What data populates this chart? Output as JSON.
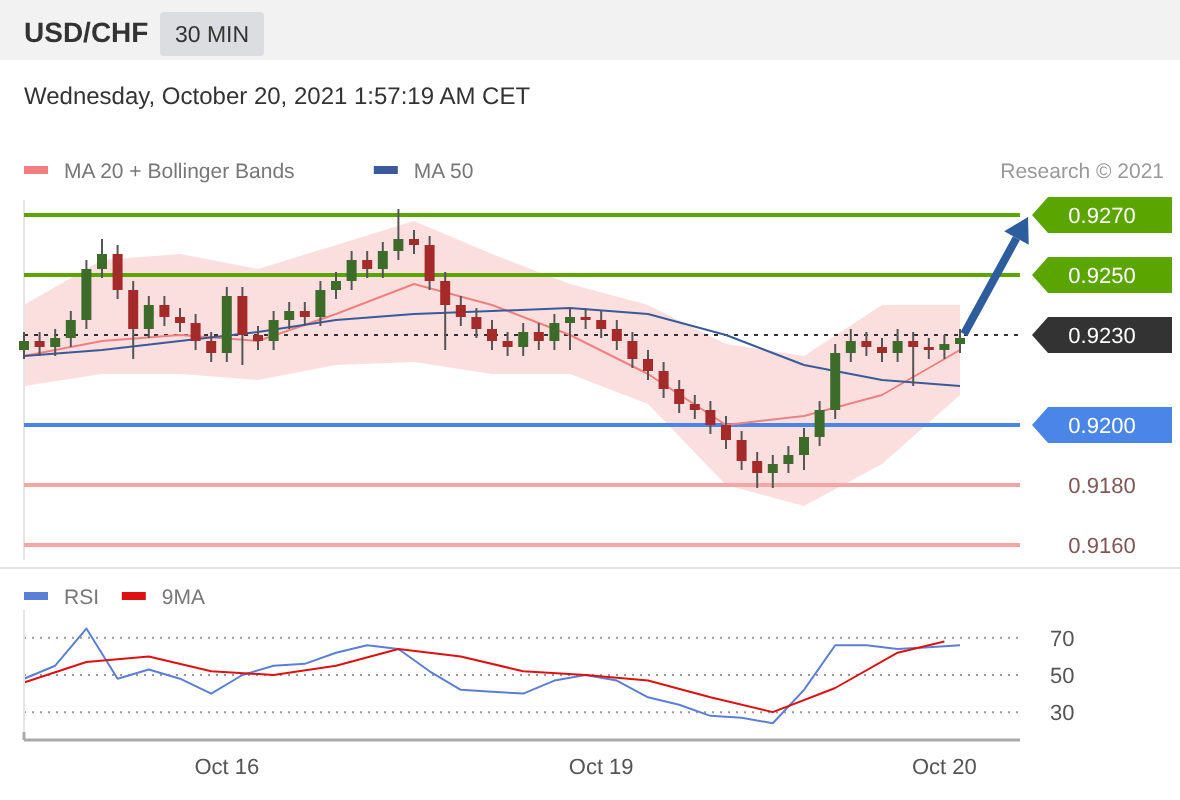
{
  "chart_data": [
    {
      "type": "candlestick",
      "title": "USD/CHF",
      "subtitle": "Wednesday, October 20, 2021 1:57:19 AM CET",
      "annotations": [
        "30 MIN",
        "Research © 2021"
      ],
      "categories": [
        null,
        null,
        null,
        null,
        null,
        null,
        null,
        null,
        null,
        null,
        null,
        null,
        null,
        null,
        null,
        null,
        null,
        null,
        null,
        null,
        null,
        null,
        null,
        null,
        null,
        null,
        null,
        null,
        null,
        null,
        null,
        null,
        null,
        null,
        null,
        null,
        null,
        null,
        null,
        null,
        null,
        null,
        null,
        null,
        null,
        null,
        null,
        null,
        null,
        null,
        null,
        null,
        null,
        null,
        null,
        null,
        null,
        null,
        null,
        null,
        null
      ],
      "ohlc": [
        [
          0.9225,
          0.9231,
          0.9222,
          0.9228
        ],
        [
          0.9228,
          0.9231,
          0.9223,
          0.9226
        ],
        [
          0.9226,
          0.9232,
          0.9223,
          0.9229
        ],
        [
          0.9229,
          0.9238,
          0.9226,
          0.9235
        ],
        [
          0.9235,
          0.9255,
          0.9232,
          0.9252
        ],
        [
          0.9252,
          0.9262,
          0.9249,
          0.9257
        ],
        [
          0.9257,
          0.926,
          0.9242,
          0.9245
        ],
        [
          0.9245,
          0.9248,
          0.9222,
          0.9232
        ],
        [
          0.9232,
          0.9243,
          0.9229,
          0.924
        ],
        [
          0.924,
          0.9243,
          0.9233,
          0.9236
        ],
        [
          0.9236,
          0.9239,
          0.9231,
          0.9234
        ],
        [
          0.9234,
          0.9237,
          0.9225,
          0.9228
        ],
        [
          0.9228,
          0.9231,
          0.9221,
          0.9224
        ],
        [
          0.9224,
          0.9246,
          0.9221,
          0.9243
        ],
        [
          0.9243,
          0.9246,
          0.922,
          0.923
        ],
        [
          0.923,
          0.9233,
          0.9225,
          0.9228
        ],
        [
          0.9228,
          0.9238,
          0.9225,
          0.9235
        ],
        [
          0.9235,
          0.9241,
          0.9232,
          0.9238
        ],
        [
          0.9238,
          0.9241,
          0.9233,
          0.9236
        ],
        [
          0.9236,
          0.9248,
          0.9233,
          0.9245
        ],
        [
          0.9245,
          0.9251,
          0.9242,
          0.9248
        ],
        [
          0.9248,
          0.9258,
          0.9245,
          0.9255
        ],
        [
          0.9255,
          0.9258,
          0.9249,
          0.9252
        ],
        [
          0.9252,
          0.9261,
          0.9249,
          0.9258
        ],
        [
          0.9258,
          0.9272,
          0.9255,
          0.9262
        ],
        [
          0.9262,
          0.9265,
          0.9257,
          0.926
        ],
        [
          0.926,
          0.9263,
          0.9245,
          0.9248
        ],
        [
          0.9248,
          0.9251,
          0.9225,
          0.924
        ],
        [
          0.924,
          0.9243,
          0.9233,
          0.9236
        ],
        [
          0.9236,
          0.9239,
          0.9229,
          0.9232
        ],
        [
          0.9232,
          0.9235,
          0.9225,
          0.9228
        ],
        [
          0.9228,
          0.9231,
          0.9223,
          0.9226
        ],
        [
          0.9226,
          0.9234,
          0.9223,
          0.9231
        ],
        [
          0.9231,
          0.9234,
          0.9225,
          0.9228
        ],
        [
          0.9228,
          0.9237,
          0.9225,
          0.9234
        ],
        [
          0.9234,
          0.9239,
          0.9225,
          0.9236
        ],
        [
          0.9236,
          0.9239,
          0.9232,
          0.9235
        ],
        [
          0.9235,
          0.9238,
          0.9229,
          0.9232
        ],
        [
          0.9232,
          0.9235,
          0.9225,
          0.9228
        ],
        [
          0.9228,
          0.9231,
          0.9219,
          0.9222
        ],
        [
          0.9222,
          0.9225,
          0.9215,
          0.9218
        ],
        [
          0.9218,
          0.9221,
          0.9209,
          0.9212
        ],
        [
          0.9212,
          0.9215,
          0.9204,
          0.9207
        ],
        [
          0.9207,
          0.921,
          0.9202,
          0.9205
        ],
        [
          0.9205,
          0.9208,
          0.9197,
          0.92
        ],
        [
          0.92,
          0.9203,
          0.9192,
          0.9195
        ],
        [
          0.9195,
          0.9198,
          0.9185,
          0.9188
        ],
        [
          0.9188,
          0.9191,
          0.9179,
          0.9184
        ],
        [
          0.9184,
          0.919,
          0.9179,
          0.9187
        ],
        [
          0.9187,
          0.9193,
          0.9184,
          0.919
        ],
        [
          0.919,
          0.9199,
          0.9185,
          0.9196
        ],
        [
          0.9196,
          0.9208,
          0.9193,
          0.9205
        ],
        [
          0.9205,
          0.9227,
          0.9202,
          0.9224
        ],
        [
          0.9224,
          0.9232,
          0.9221,
          0.9228
        ],
        [
          0.9228,
          0.9231,
          0.9223,
          0.9226
        ],
        [
          0.9226,
          0.9229,
          0.9221,
          0.9224
        ],
        [
          0.9224,
          0.9232,
          0.9221,
          0.9228
        ],
        [
          0.9228,
          0.9231,
          0.9213,
          0.9226
        ],
        [
          0.9226,
          0.9229,
          0.9222,
          0.9225
        ],
        [
          0.9225,
          0.923,
          0.9222,
          0.9227
        ],
        [
          0.9227,
          0.9232,
          0.9224,
          0.9229
        ]
      ],
      "colors": [
        "#3d6b2a",
        "#a52a2a",
        "#3d6b2a",
        "#3d6b2a",
        "#3d6b2a",
        "#3d6b2a",
        "#a52a2a",
        "#a52a2a",
        "#3d6b2a",
        "#a52a2a",
        "#a52a2a",
        "#a52a2a",
        "#a52a2a",
        "#3d6b2a",
        "#a52a2a",
        "#a52a2a",
        "#3d6b2a",
        "#3d6b2a",
        "#a52a2a",
        "#3d6b2a",
        "#3d6b2a",
        "#3d6b2a",
        "#a52a2a",
        "#3d6b2a",
        "#3d6b2a",
        "#a52a2a",
        "#a52a2a",
        "#a52a2a",
        "#a52a2a",
        "#a52a2a",
        "#a52a2a",
        "#a52a2a",
        "#3d6b2a",
        "#a52a2a",
        "#3d6b2a",
        "#3d6b2a",
        "#a52a2a",
        "#a52a2a",
        "#a52a2a",
        "#a52a2a",
        "#a52a2a",
        "#a52a2a",
        "#a52a2a",
        "#a52a2a",
        "#a52a2a",
        "#a52a2a",
        "#a52a2a",
        "#a52a2a",
        "#3d6b2a",
        "#3d6b2a",
        "#3d6b2a",
        "#3d6b2a",
        "#3d6b2a",
        "#3d6b2a",
        "#a52a2a",
        "#a52a2a",
        "#3d6b2a",
        "#a52a2a",
        "#a52a2a",
        "#3d6b2a",
        "#3d6b2a"
      ],
      "series": [
        {
          "name": "MA 20 + Bollinger Bands",
          "type": "line",
          "color": "#f08080",
          "values": [
            0.9223,
            null,
            null,
            null,
            null,
            0.9228,
            null,
            null,
            null,
            null,
            0.923,
            null,
            null,
            null,
            null,
            0.9228,
            null,
            null,
            null,
            null,
            0.9237,
            null,
            null,
            null,
            null,
            0.9247,
            null,
            null,
            null,
            null,
            0.924,
            null,
            null,
            null,
            null,
            0.923,
            null,
            null,
            null,
            null,
            0.9217,
            null,
            null,
            null,
            null,
            0.92,
            null,
            null,
            null,
            null,
            0.9203,
            null,
            null,
            null,
            null,
            0.921,
            null,
            null,
            null,
            null,
            0.9225
          ],
          "lower": [
            0.9213,
            null,
            null,
            null,
            null,
            0.9217,
            null,
            null,
            null,
            null,
            0.9217,
            null,
            null,
            null,
            null,
            0.9215,
            null,
            null,
            null,
            null,
            0.922,
            null,
            null,
            null,
            null,
            0.9221,
            null,
            null,
            null,
            null,
            0.9217,
            null,
            null,
            null,
            null,
            0.9217,
            null,
            null,
            null,
            null,
            0.9207,
            null,
            null,
            null,
            null,
            0.918,
            null,
            null,
            null,
            null,
            0.9173,
            null,
            null,
            null,
            null,
            0.9187,
            null,
            null,
            null,
            null,
            0.921
          ],
          "upper": [
            0.924,
            null,
            null,
            null,
            null,
            0.9255,
            null,
            null,
            null,
            null,
            0.9257,
            null,
            null,
            null,
            null,
            0.9252,
            null,
            null,
            null,
            null,
            0.926,
            null,
            null,
            null,
            null,
            0.9268,
            null,
            null,
            null,
            null,
            0.9257,
            null,
            null,
            null,
            null,
            0.9247,
            null,
            null,
            null,
            null,
            0.924,
            null,
            null,
            null,
            null,
            0.9227,
            null,
            null,
            null,
            null,
            0.9223,
            null,
            null,
            null,
            null,
            0.924,
            null,
            null,
            null,
            null,
            0.924
          ]
        },
        {
          "name": "MA 50",
          "type": "line",
          "color": "#3a5a9a",
          "values": [
            0.9223,
            null,
            null,
            null,
            null,
            0.9225,
            null,
            null,
            null,
            null,
            0.9228,
            null,
            null,
            null,
            null,
            0.9231,
            null,
            null,
            null,
            null,
            0.9235,
            null,
            null,
            null,
            null,
            0.9237,
            null,
            null,
            null,
            null,
            0.9238,
            null,
            null,
            null,
            null,
            0.9239,
            null,
            null,
            null,
            null,
            0.9237,
            null,
            null,
            null,
            null,
            0.923,
            null,
            null,
            null,
            null,
            0.922,
            null,
            null,
            null,
            null,
            0.9215,
            null,
            null,
            null,
            null,
            0.9213
          ]
        }
      ],
      "ylim": [
        0.9155,
        0.9275
      ],
      "yticks": [
        {
          "value": 0.927,
          "label": "0.9270"
        },
        {
          "value": 0.925,
          "label": "0.9250"
        },
        {
          "value": 0.923,
          "label": "0.9230"
        },
        {
          "value": 0.92,
          "label": "0.9200"
        },
        {
          "value": 0.918,
          "label": "0.9180"
        },
        {
          "value": 0.916,
          "label": "0.9160"
        }
      ],
      "ref_lines": [
        {
          "axis": "y",
          "value": 0.927,
          "color": "#5aa500",
          "line_style": "solid"
        },
        {
          "axis": "y",
          "value": 0.925,
          "color": "#5aa500",
          "line_style": "solid"
        },
        {
          "axis": "y",
          "value": 0.923,
          "color": "#333333",
          "line_style": "dotted"
        },
        {
          "axis": "y",
          "value": 0.92,
          "color": "#4a86e8",
          "line_style": "solid"
        },
        {
          "axis": "y",
          "value": 0.918,
          "color": "#f4a6a6",
          "line_style": "solid"
        },
        {
          "axis": "y",
          "value": 0.916,
          "color": "#f4a6a6",
          "line_style": "solid"
        }
      ],
      "legend": "top left",
      "tick_labels": "y"
    },
    {
      "type": "line",
      "categories": [
        null,
        null,
        null,
        null,
        null,
        null,
        null,
        null,
        null,
        null,
        null,
        null,
        null,
        "Oct 16",
        null,
        null,
        null,
        null,
        null,
        null,
        null,
        null,
        null,
        null,
        null,
        null,
        null,
        null,
        null,
        null,
        null,
        null,
        null,
        null,
        null,
        null,
        null,
        "Oct 19",
        null,
        null,
        null,
        null,
        null,
        null,
        null,
        null,
        null,
        null,
        null,
        null,
        null,
        null,
        null,
        null,
        null,
        null,
        null,
        null,
        null,
        "Oct 20",
        null
      ],
      "series": [
        {
          "name": "RSI",
          "color": "#5b7fd6",
          "values": [
            48,
            null,
            55,
            null,
            75,
            null,
            48,
            null,
            53,
            null,
            48,
            null,
            40,
            null,
            50,
            null,
            55,
            null,
            56,
            null,
            62,
            null,
            66,
            null,
            64,
            null,
            52,
            null,
            42,
            null,
            41,
            null,
            40,
            null,
            47,
            null,
            50,
            null,
            47,
            null,
            38,
            null,
            34,
            null,
            28,
            null,
            27,
            null,
            24,
            null,
            42,
            null,
            66,
            null,
            66,
            null,
            64,
            null,
            65,
            null,
            66
          ]
        },
        {
          "name": "9MA",
          "color": "#dd1111",
          "values": [
            46,
            null,
            null,
            null,
            57,
            null,
            null,
            null,
            60,
            null,
            null,
            null,
            52,
            null,
            null,
            null,
            50,
            null,
            null,
            null,
            55,
            null,
            null,
            null,
            64,
            null,
            null,
            null,
            60,
            null,
            null,
            null,
            52,
            null,
            null,
            null,
            50,
            null,
            null,
            null,
            47,
            null,
            null,
            null,
            38,
            null,
            null,
            null,
            30,
            null,
            null,
            null,
            43,
            null,
            null,
            null,
            62,
            null,
            null,
            68,
            null
          ]
        }
      ],
      "ylim": [
        15,
        85
      ],
      "yticks": [
        70,
        50,
        30
      ],
      "grid": "y",
      "legend": "top left"
    }
  ]
}
